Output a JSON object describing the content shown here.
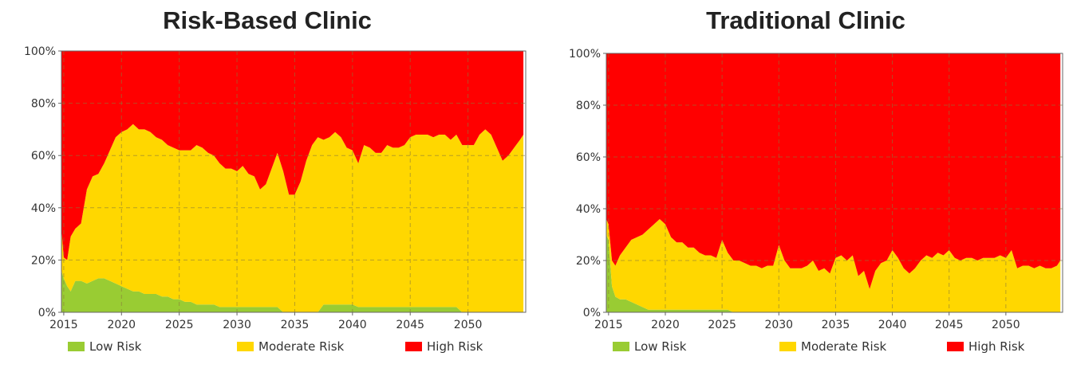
{
  "colors": {
    "low": "#99cc33",
    "moderate": "#ffd700",
    "high": "#ff0000"
  },
  "chart_data": [
    {
      "type": "area",
      "stacking": "percent",
      "title": "Risk-Based Clinic",
      "x_ticks": [
        "2015",
        "2020",
        "2025",
        "2030",
        "2035",
        "2040",
        "2045",
        "2050"
      ],
      "y_ticks": [
        "0%",
        "20%",
        "40%",
        "60%",
        "80%",
        "100%"
      ],
      "xlim": [
        2014.8,
        2055
      ],
      "ylim": [
        0,
        100
      ],
      "grid": true,
      "legend_position": "bottom",
      "x": [
        2014.8,
        2015.0,
        2015.3,
        2015.6,
        2016.0,
        2016.5,
        2017.0,
        2017.5,
        2018.0,
        2018.5,
        2019.0,
        2019.5,
        2020.0,
        2020.5,
        2021.0,
        2021.5,
        2022.0,
        2022.5,
        2023.0,
        2023.5,
        2024.0,
        2024.5,
        2025.0,
        2025.5,
        2026.0,
        2026.5,
        2027.0,
        2027.5,
        2028.0,
        2028.5,
        2029.0,
        2029.5,
        2030.0,
        2030.5,
        2031.0,
        2031.5,
        2032.0,
        2032.5,
        2033.0,
        2033.5,
        2034.0,
        2034.5,
        2035.0,
        2035.5,
        2036.0,
        2036.5,
        2037.0,
        2037.5,
        2038.0,
        2038.5,
        2039.0,
        2039.5,
        2040.0,
        2040.5,
        2041.0,
        2041.5,
        2042.0,
        2042.5,
        2043.0,
        2043.5,
        2044.0,
        2044.5,
        2045.0,
        2045.5,
        2046.0,
        2046.5,
        2047.0,
        2047.5,
        2048.0,
        2048.5,
        2049.0,
        2049.5,
        2050.0,
        2050.5,
        2051.0,
        2051.5,
        2052.0,
        2052.5,
        2053.0,
        2053.5,
        2054.0,
        2054.5,
        2054.8
      ],
      "series": [
        {
          "name": "Low Risk",
          "color_key": "low",
          "values": [
            16,
            13,
            10,
            8,
            12,
            12,
            11,
            12,
            13,
            13,
            12,
            11,
            10,
            9,
            8,
            8,
            7,
            7,
            7,
            6,
            6,
            5,
            5,
            4,
            4,
            3,
            3,
            3,
            3,
            2,
            2,
            2,
            2,
            2,
            2,
            2,
            2,
            2,
            2,
            2,
            0,
            0,
            0,
            0,
            0,
            0,
            0,
            3,
            3,
            3,
            3,
            3,
            3,
            2,
            2,
            2,
            2,
            2,
            2,
            2,
            2,
            2,
            2,
            2,
            2,
            2,
            2,
            2,
            2,
            2,
            2,
            0,
            0,
            0,
            0,
            0,
            0,
            0,
            0,
            0,
            0,
            0,
            0
          ]
        },
        {
          "name": "Moderate Risk",
          "color_key": "moderate",
          "values": [
            16,
            8,
            10,
            21,
            20,
            22,
            36,
            40,
            40,
            44,
            50,
            56,
            59,
            61,
            64,
            62,
            63,
            62,
            60,
            60,
            58,
            58,
            57,
            58,
            58,
            61,
            60,
            58,
            57,
            55,
            53,
            53,
            52,
            54,
            51,
            50,
            45,
            47,
            53,
            59,
            54,
            45,
            45,
            50,
            58,
            64,
            67,
            63,
            64,
            66,
            64,
            60,
            59,
            55,
            62,
            61,
            59,
            59,
            62,
            61,
            61,
            62,
            65,
            66,
            66,
            66,
            65,
            66,
            66,
            64,
            66,
            64,
            64,
            64,
            68,
            70,
            68,
            63,
            58,
            60,
            63,
            66,
            68
          ]
        },
        {
          "name": "High Risk",
          "color_key": "high",
          "values": [
            68,
            79,
            80,
            71,
            68,
            66,
            53,
            48,
            47,
            43,
            38,
            33,
            31,
            30,
            28,
            30,
            30,
            31,
            33,
            34,
            36,
            37,
            38,
            38,
            38,
            36,
            37,
            39,
            40,
            43,
            45,
            45,
            46,
            44,
            47,
            48,
            53,
            51,
            45,
            39,
            46,
            55,
            55,
            50,
            42,
            36,
            33,
            34,
            33,
            31,
            33,
            37,
            38,
            43,
            36,
            37,
            39,
            39,
            36,
            37,
            37,
            36,
            33,
            32,
            32,
            32,
            33,
            32,
            32,
            34,
            32,
            36,
            36,
            36,
            32,
            30,
            32,
            37,
            42,
            40,
            37,
            34,
            32
          ]
        }
      ]
    },
    {
      "type": "area",
      "stacking": "percent",
      "title": "Traditional Clinic",
      "x_ticks": [
        "2015",
        "2020",
        "2025",
        "2030",
        "2035",
        "2040",
        "2045",
        "2050"
      ],
      "y_ticks": [
        "0%",
        "20%",
        "40%",
        "60%",
        "80%",
        "100%"
      ],
      "xlim": [
        2014.8,
        2055
      ],
      "ylim": [
        0,
        100
      ],
      "grid": true,
      "legend_position": "bottom",
      "x": [
        2014.8,
        2015.0,
        2015.3,
        2015.6,
        2016.0,
        2016.5,
        2017.0,
        2017.5,
        2018.0,
        2018.5,
        2019.0,
        2019.5,
        2020.0,
        2020.5,
        2021.0,
        2021.5,
        2022.0,
        2022.5,
        2023.0,
        2023.5,
        2024.0,
        2024.5,
        2025.0,
        2025.5,
        2026.0,
        2026.5,
        2027.0,
        2027.5,
        2028.0,
        2028.5,
        2029.0,
        2029.5,
        2030.0,
        2030.5,
        2031.0,
        2031.5,
        2032.0,
        2032.5,
        2033.0,
        2033.5,
        2034.0,
        2034.5,
        2035.0,
        2035.5,
        2036.0,
        2036.5,
        2037.0,
        2037.5,
        2038.0,
        2038.5,
        2039.0,
        2039.5,
        2040.0,
        2040.5,
        2041.0,
        2041.5,
        2042.0,
        2042.5,
        2043.0,
        2043.5,
        2044.0,
        2044.5,
        2045.0,
        2045.5,
        2046.0,
        2046.5,
        2047.0,
        2047.5,
        2048.0,
        2048.5,
        2049.0,
        2049.5,
        2050.0,
        2050.5,
        2051.0,
        2051.5,
        2052.0,
        2052.5,
        2053.0,
        2053.5,
        2054.0,
        2054.5,
        2054.8
      ],
      "series": [
        {
          "name": "Low Risk",
          "color_key": "low",
          "values": [
            30,
            28,
            10,
            6,
            5,
            5,
            4,
            3,
            2,
            1,
            1,
            1,
            1,
            1,
            1,
            1,
            1,
            1,
            1,
            1,
            1,
            1,
            1,
            1,
            0,
            0,
            0,
            0,
            0,
            0,
            0,
            0,
            0,
            0,
            0,
            0,
            0,
            0,
            0,
            0,
            0,
            0,
            0,
            0,
            0,
            0,
            0,
            0,
            0,
            0,
            0,
            0,
            0,
            0,
            0,
            0,
            0,
            0,
            0,
            0,
            0,
            0,
            0,
            0,
            0,
            0,
            0,
            0,
            0,
            0,
            0,
            0,
            0,
            0,
            0,
            0,
            0,
            0,
            0,
            0,
            0,
            0,
            0
          ]
        },
        {
          "name": "Moderate Risk",
          "color_key": "moderate",
          "values": [
            6,
            6,
            10,
            12,
            17,
            20,
            24,
            26,
            28,
            31,
            33,
            35,
            33,
            28,
            26,
            26,
            24,
            24,
            22,
            21,
            21,
            20,
            27,
            22,
            20,
            20,
            19,
            18,
            18,
            17,
            18,
            18,
            26,
            20,
            17,
            17,
            17,
            18,
            20,
            16,
            17,
            15,
            21,
            22,
            20,
            22,
            14,
            16,
            9,
            16,
            19,
            20,
            24,
            21,
            17,
            15,
            17,
            20,
            22,
            21,
            23,
            22,
            24,
            21,
            20,
            21,
            21,
            20,
            21,
            21,
            21,
            22,
            21,
            24,
            17,
            18,
            18,
            17,
            18,
            17,
            17,
            18,
            20
          ]
        },
        {
          "name": "High Risk",
          "color_key": "high",
          "values": [
            64,
            66,
            80,
            82,
            78,
            75,
            72,
            71,
            70,
            68,
            66,
            64,
            66,
            71,
            73,
            73,
            75,
            75,
            77,
            78,
            78,
            79,
            72,
            77,
            80,
            80,
            81,
            82,
            82,
            83,
            82,
            82,
            74,
            80,
            83,
            83,
            83,
            82,
            80,
            84,
            83,
            85,
            79,
            78,
            80,
            78,
            86,
            84,
            91,
            84,
            81,
            80,
            76,
            79,
            83,
            85,
            83,
            80,
            78,
            79,
            77,
            78,
            76,
            79,
            80,
            79,
            79,
            80,
            79,
            79,
            79,
            78,
            79,
            76,
            83,
            82,
            82,
            83,
            82,
            83,
            83,
            82,
            80
          ]
        }
      ]
    }
  ]
}
